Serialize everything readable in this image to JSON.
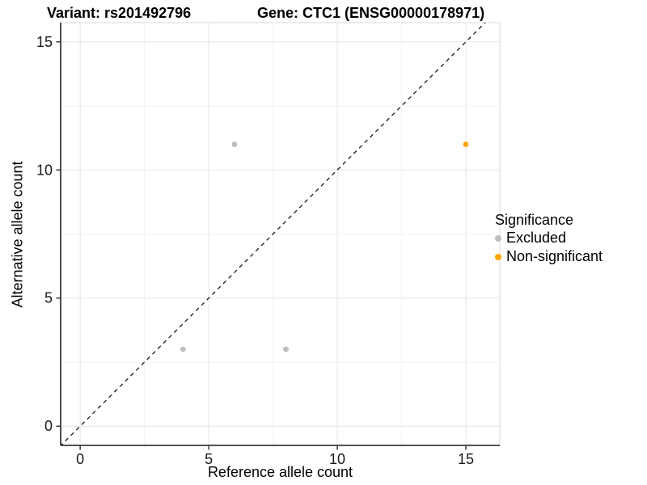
{
  "chart_data": {
    "type": "scatter",
    "title_variant": "Variant: rs201492796",
    "title_gene": "Gene: CTC1 (ENSG00000178971)",
    "xlabel": "Reference allele count",
    "ylabel": "Alternative allele count",
    "xlim": [
      -0.76,
      16.32
    ],
    "ylim": [
      -0.75,
      15.75
    ],
    "x_ticks": [
      0,
      5,
      10,
      15
    ],
    "y_ticks": [
      0,
      5,
      10,
      15
    ],
    "x_minor_gridlines": [
      2.5,
      7.5,
      12.5
    ],
    "y_minor_gridlines": [
      2.5,
      7.5,
      12.5
    ],
    "grid": true,
    "identity_line": {
      "equation": "y = x",
      "style": "dashed",
      "color": "#1a1a1a"
    },
    "legend": {
      "title": "Significance",
      "position": "right"
    },
    "series": [
      {
        "name": "Excluded",
        "color": "#bdbdbd",
        "points": [
          [
            4,
            3
          ],
          [
            6,
            11
          ],
          [
            8,
            3
          ]
        ]
      },
      {
        "name": "Non-significant",
        "color": "#ffa500",
        "points": [
          [
            15,
            11
          ]
        ]
      }
    ]
  }
}
